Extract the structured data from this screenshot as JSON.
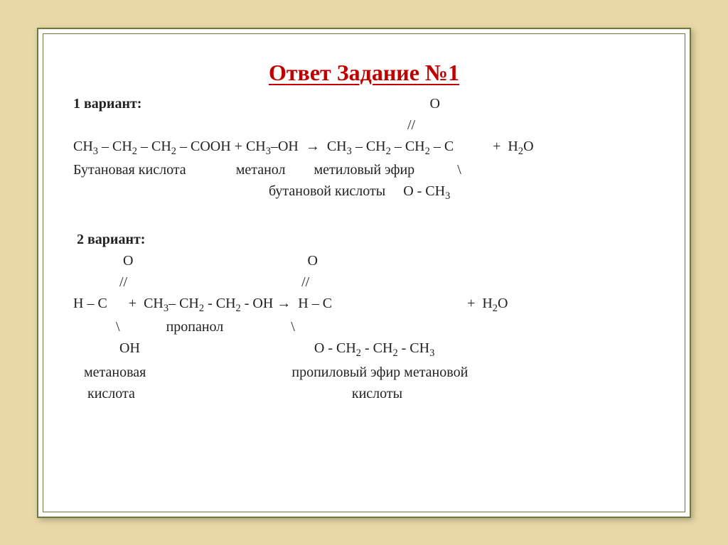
{
  "title": "Ответ Задание №1",
  "variant1": {
    "label": "1 вариант:",
    "oxygen_top": "O",
    "dbl_bond": "//",
    "equation_left": "СН₃ – СН₂ – СН₂ – СООН + СН₃–ОН  →  СН₃ – СН₂ – СН₂ – С",
    "equation_right": "+  Н₂О",
    "sub1_left": "Бутановая кислота",
    "sub1_mid": "метанол",
    "sub1_right": "метиловый эфир",
    "backslash": "\\",
    "sub2": "бутановой кислоты",
    "och3": "О - СН₃"
  },
  "variant2": {
    "label": "2 вариант:",
    "oxygen_left": "О",
    "oxygen_right": "О",
    "dbl_left": "//",
    "dbl_right": "//",
    "eq_l1": "Н – С",
    "eq_plus": "+  СН₃– СН₂ - СН₂ - ОН →  Н – С",
    "eq_h2o": "+  Н₂О",
    "bs1": "\\",
    "propanol": "пропанол",
    "bs2": "\\",
    "oh": "ОН",
    "och2": "О - СН₂ - СН₂ - СН₃",
    "meth_acid": "метановая",
    "propyl_ester": "пропиловый эфир метановой",
    "acid1": "кислота",
    "acid2": "кислоты"
  }
}
